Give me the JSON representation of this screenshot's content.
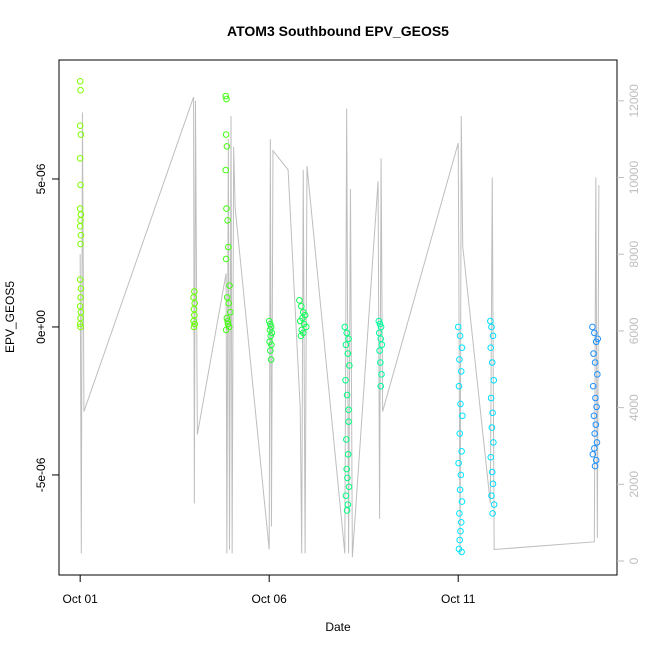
{
  "chart_data": {
    "type": "scatter",
    "title": "ATOM3 Southbound EPV_GEOS5",
    "xlabel": "Date",
    "ylabel": "EPV_GEOS5",
    "xlim": [
      -0.56,
      14.2
    ],
    "xticks": [
      {
        "value": 0,
        "label": "Oct 01"
      },
      {
        "value": 5,
        "label": "Oct 06"
      },
      {
        "value": 10,
        "label": "Oct 11"
      }
    ],
    "ylim": [
      -8.38e-06,
      9.02e-06
    ],
    "yticks": [
      {
        "value": -5e-06,
        "label": "-5e-06"
      },
      {
        "value": 0,
        "label": "0e+00"
      },
      {
        "value": 5e-06,
        "label": "5e-06"
      }
    ],
    "y2lim": [
      -365,
      13065
    ],
    "y2ticks": [
      0,
      2000,
      4000,
      6000,
      8000,
      10000,
      12000
    ],
    "series": [
      {
        "type": "line",
        "axis": "y2",
        "color": "#bebebe",
        "x": [
          0,
          0.03,
          0.06,
          0.1,
          3.0,
          3.02,
          3.05,
          3.1,
          3.86,
          3.88,
          3.92,
          3.95,
          3.99,
          4.02,
          4.06,
          4.1,
          5.0,
          5.03,
          5.06,
          5.1,
          5.5,
          5.82,
          5.86,
          5.9,
          5.95,
          6.0,
          7.0,
          7.05,
          7.1,
          7.15,
          7.2,
          7.88,
          7.92,
          7.96,
          8.0,
          10.0,
          10.05,
          10.08,
          10.12,
          10.85,
          10.9,
          10.95,
          13.6,
          13.64,
          13.68,
          13.72
        ],
        "values": [
          8000,
          200,
          11700,
          3900,
          12100,
          1500,
          12000,
          3300,
          7500,
          200,
          11000,
          300,
          11600,
          200,
          10800,
          9200,
          300,
          11000,
          900,
          10700,
          10200,
          4000,
          200,
          10200,
          200,
          10300,
          200,
          11800,
          200,
          9700,
          100,
          9900,
          1100,
          10500,
          3900,
          10900,
          200,
          11600,
          8200,
          1500,
          10000,
          300,
          500,
          10000,
          600,
          9800
        ]
      },
      {
        "color": "#7fff00",
        "x": [
          0,
          0.01,
          0,
          0.02,
          0,
          0.01,
          0,
          0.02,
          0.01,
          0,
          0.02,
          0.01,
          0,
          0.02,
          0.01,
          0,
          0.02,
          0.01,
          0,
          0.01
        ],
        "values": [
          8.3e-06,
          8e-06,
          6.8e-06,
          6.5e-06,
          5.7e-06,
          4.8e-06,
          4e-06,
          3.8e-06,
          3.6e-06,
          3.4e-06,
          3.1e-06,
          2.8e-06,
          1.6e-06,
          1.3e-06,
          1e-06,
          7e-07,
          5e-07,
          3e-07,
          1e-07,
          0.0
        ]
      },
      {
        "color": "#66ff00",
        "x": [
          3.02,
          3.0,
          3.03,
          3.01,
          3.02,
          3.0,
          3.03,
          3.01
        ],
        "values": [
          1.2e-06,
          1e-06,
          8e-07,
          6e-07,
          4e-07,
          2e-07,
          1e-07,
          0.0
        ]
      },
      {
        "color": "#44ff10",
        "x": [
          3.85,
          3.87,
          3.86,
          3.88,
          3.85,
          3.87,
          3.9,
          3.92,
          3.86,
          3.95,
          3.89,
          3.93,
          3.97,
          3.88,
          3.91,
          3.94,
          3.86,
          3.9
        ],
        "values": [
          7.8e-06,
          7.7e-06,
          6.5e-06,
          6.1e-06,
          5.3e-06,
          4e-06,
          3.6e-06,
          2.7e-06,
          2.3e-06,
          1.4e-06,
          1e-06,
          8e-07,
          5e-07,
          3e-07,
          1e-07,
          0.0,
          -1e-07,
          2e-07
        ]
      },
      {
        "color": "#22ff40",
        "x": [
          5.0,
          5.03,
          5.05,
          5.02,
          5.07,
          5.04,
          5.01,
          5.06,
          5.03,
          5.05
        ],
        "values": [
          2e-07,
          1e-07,
          0.0,
          -1e-07,
          -2e-07,
          -3e-07,
          -5e-07,
          -6e-07,
          -8e-07,
          -1.1e-06
        ]
      },
      {
        "color": "#10ff55",
        "x": [
          5.8,
          5.85,
          5.9,
          5.95,
          5.88,
          5.82,
          5.92,
          5.98,
          5.86,
          5.9,
          5.84
        ],
        "values": [
          9e-07,
          7e-07,
          5e-07,
          4e-07,
          3e-07,
          2e-07,
          1e-07,
          0.0,
          -1e-07,
          -2e-07,
          -3e-07
        ]
      },
      {
        "color": "#00ff80",
        "x": [
          7.0,
          7.05,
          7.1,
          7.03,
          7.08,
          7.12,
          7.02,
          7.06,
          7.1,
          7.04,
          7.09,
          7.05,
          7.07,
          7.11,
          7.03,
          7.08,
          7.06,
          7.1
        ],
        "values": [
          0.0,
          -2e-07,
          -4e-07,
          -6e-07,
          -9e-07,
          -1.3e-06,
          -1.8e-06,
          -2.3e-06,
          -3.2e-06,
          -3.8e-06,
          -4.3e-06,
          -4.8e-06,
          -5.1e-06,
          -5.4e-06,
          -5.7e-06,
          -6e-06,
          -6.2e-06,
          -2.8e-06
        ]
      },
      {
        "color": "#00ffa0",
        "x": [
          7.9,
          7.93,
          7.96,
          7.91,
          7.95,
          7.98,
          7.92,
          7.94,
          7.97,
          7.95
        ],
        "values": [
          2e-07,
          1e-07,
          0.0,
          -2e-07,
          -4e-07,
          -6e-07,
          -8e-07,
          -1.2e-06,
          -1.6e-06,
          -2e-06
        ]
      },
      {
        "color": "#00e5ff",
        "x": [
          10.0,
          10.05,
          10.1,
          10.03,
          10.08,
          10.02,
          10.06,
          10.11,
          10.04,
          10.09,
          10.01,
          10.07,
          10.05,
          10.1,
          10.03,
          10.08,
          10.06,
          10.04,
          10.02,
          10.09
        ],
        "values": [
          0.0,
          -3e-07,
          -7e-07,
          -1.1e-06,
          -1.5e-06,
          -2e-06,
          -2.6e-06,
          -3e-06,
          -3.6e-06,
          -4.2e-06,
          -4.6e-06,
          -5e-06,
          -5.5e-06,
          -5.9e-06,
          -6.3e-06,
          -6.6e-06,
          -6.9e-06,
          -7.2e-06,
          -7.5e-06,
          -7.6e-06
        ]
      },
      {
        "color": "#00ddff",
        "x": [
          10.85,
          10.88,
          10.92,
          10.86,
          10.9,
          10.94,
          10.87,
          10.91,
          10.89,
          10.93,
          10.86,
          10.9,
          10.92,
          10.88,
          10.95,
          10.91
        ],
        "values": [
          2e-07,
          0.0,
          -3e-07,
          -7e-07,
          -1.2e-06,
          -1.8e-06,
          -2.4e-06,
          -2.9e-06,
          -3.4e-06,
          -3.9e-06,
          -4.4e-06,
          -4.9e-06,
          -5.3e-06,
          -5.7e-06,
          -6e-06,
          -6.3e-06
        ]
      },
      {
        "color": "#1e90ff",
        "x": [
          13.55,
          13.6,
          13.65,
          13.58,
          13.62,
          13.68,
          13.57,
          13.63,
          13.66,
          13.59,
          13.64,
          13.61,
          13.67,
          13.6,
          13.56,
          13.65,
          13.62,
          13.69
        ],
        "values": [
          0.0,
          -2e-07,
          -5e-07,
          -9e-07,
          -1.2e-06,
          -1.6e-06,
          -2e-06,
          -2.4e-06,
          -2.7e-06,
          -3e-06,
          -3.3e-06,
          -3.6e-06,
          -3.9e-06,
          -4.1e-06,
          -4.3e-06,
          -4.5e-06,
          -4.7e-06,
          -4e-07
        ]
      }
    ]
  }
}
